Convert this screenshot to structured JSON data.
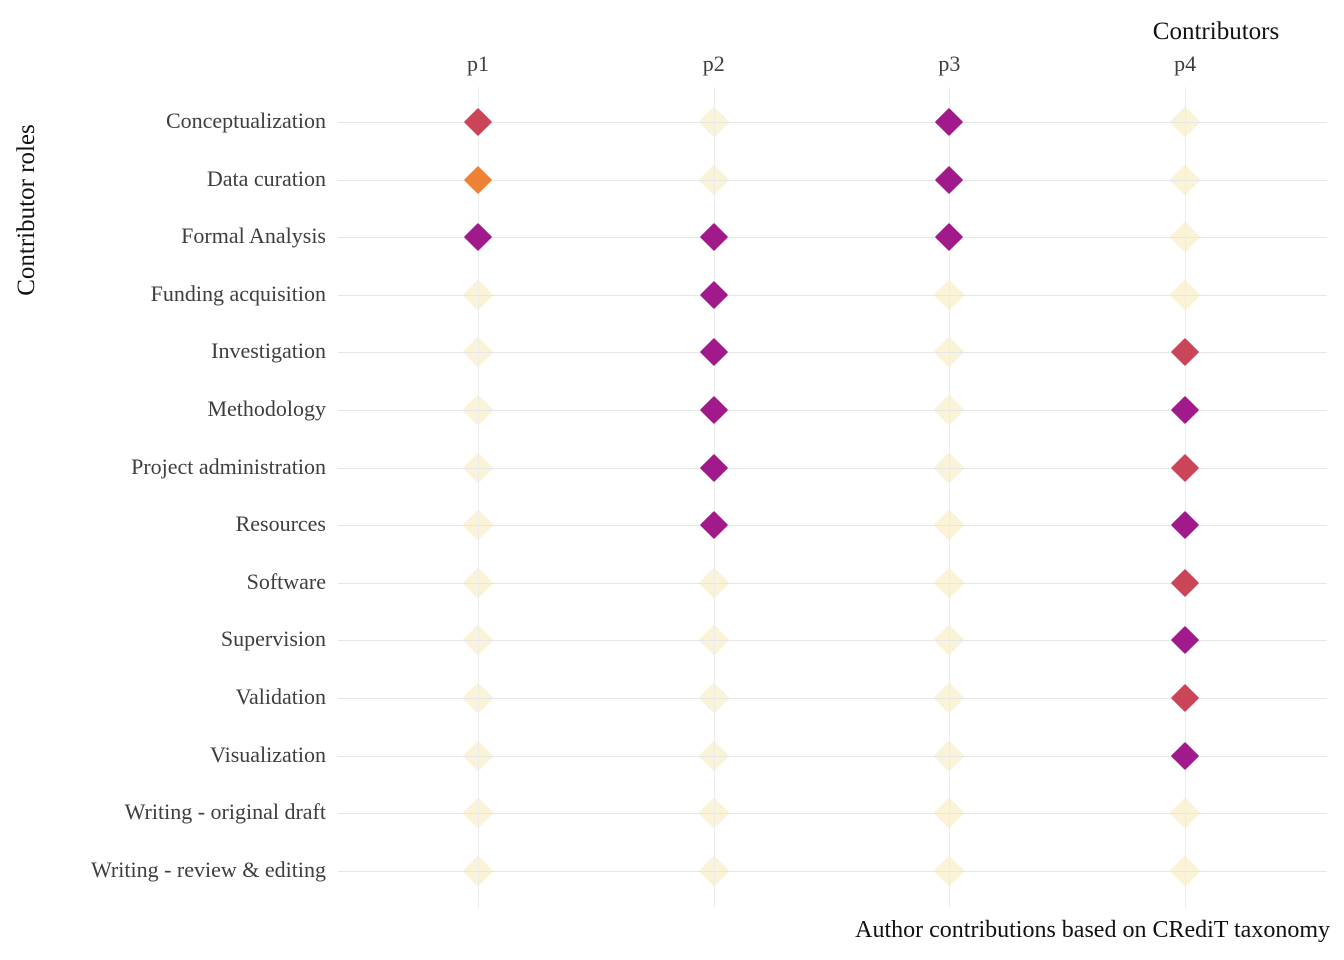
{
  "axis_titles": {
    "x": "Contributors",
    "y": "Contributor roles"
  },
  "caption": "Author contributions based on CRediT taxonomy",
  "contributors": [
    "p1",
    "p2",
    "p3",
    "p4"
  ],
  "roles": [
    "Conceptualization",
    "Data curation",
    "Formal Analysis",
    "Funding acquisition",
    "Investigation",
    "Methodology",
    "Project administration",
    "Resources",
    "Software",
    "Supervision",
    "Validation",
    "Visualization",
    "Writing - original draft",
    "Writing - review & editing"
  ],
  "palette": {
    "none": "#FBF3D8",
    "supporting": "#EF8134",
    "equal": "#CB4558",
    "lead": "#A01A8C"
  },
  "chart_data": {
    "type": "scatter",
    "title": "",
    "xlabel": "Contributors",
    "ylabel": "Contributor roles",
    "marker": "diamond",
    "grid": true,
    "legend": false,
    "x_categories": [
      "p1",
      "p2",
      "p3",
      "p4"
    ],
    "y_categories": [
      "Conceptualization",
      "Data curation",
      "Formal Analysis",
      "Funding acquisition",
      "Investigation",
      "Methodology",
      "Project administration",
      "Resources",
      "Software",
      "Supervision",
      "Validation",
      "Visualization",
      "Writing - original draft",
      "Writing - review & editing"
    ],
    "contribution_matrix": [
      [
        "equal",
        "none",
        "lead",
        "none"
      ],
      [
        "supporting",
        "none",
        "lead",
        "none"
      ],
      [
        "lead",
        "lead",
        "lead",
        "none"
      ],
      [
        "none",
        "lead",
        "none",
        "none"
      ],
      [
        "none",
        "lead",
        "none",
        "equal"
      ],
      [
        "none",
        "lead",
        "none",
        "lead"
      ],
      [
        "none",
        "lead",
        "none",
        "equal"
      ],
      [
        "none",
        "lead",
        "none",
        "lead"
      ],
      [
        "none",
        "none",
        "none",
        "equal"
      ],
      [
        "none",
        "none",
        "none",
        "lead"
      ],
      [
        "none",
        "none",
        "none",
        "equal"
      ],
      [
        "none",
        "none",
        "none",
        "lead"
      ],
      [
        "none",
        "none",
        "none",
        "none"
      ],
      [
        "none",
        "none",
        "none",
        "none"
      ]
    ]
  }
}
